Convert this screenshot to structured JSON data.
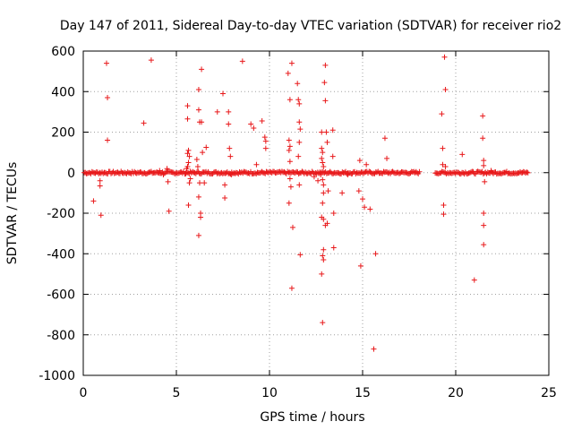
{
  "chart_data": {
    "type": "scatter",
    "title": "Day 147 of 2011, Sidereal Day-to-day VTEC variation (SDTVAR) for receiver rio2",
    "xlabel": "GPS time / hours",
    "ylabel": "SDTVAR / TECUs",
    "xlim": [
      0,
      25
    ],
    "ylim": [
      -1000,
      600
    ],
    "xticks": [
      0,
      5,
      10,
      15,
      20,
      25
    ],
    "yticks": [
      -1000,
      -800,
      -600,
      -400,
      -200,
      0,
      200,
      400,
      600
    ],
    "grid": true,
    "marker": "+",
    "color": "#e8181a",
    "dense_band": {
      "segments": [
        [
          0.05,
          18.1
        ],
        [
          18.9,
          23.9
        ]
      ],
      "y_spread": 6
    },
    "series": [
      {
        "name": "SDTVAR",
        "points": [
          [
            0.55,
            -140
          ],
          [
            0.9,
            -40
          ],
          [
            0.9,
            -65
          ],
          [
            0.95,
            -210
          ],
          [
            1.25,
            540
          ],
          [
            1.3,
            370
          ],
          [
            1.3,
            160
          ],
          [
            3.25,
            245
          ],
          [
            3.65,
            555
          ],
          [
            4.1,
            10
          ],
          [
            4.3,
            -10
          ],
          [
            4.5,
            20
          ],
          [
            4.55,
            -45
          ],
          [
            4.6,
            -190
          ],
          [
            5.5,
            -5
          ],
          [
            5.55,
            20
          ],
          [
            5.6,
            330
          ],
          [
            5.6,
            265
          ],
          [
            5.65,
            110
          ],
          [
            5.6,
            95
          ],
          [
            5.7,
            80
          ],
          [
            5.65,
            50
          ],
          [
            5.6,
            30
          ],
          [
            5.75,
            -30
          ],
          [
            5.7,
            -50
          ],
          [
            5.65,
            -160
          ],
          [
            6.1,
            65
          ],
          [
            6.15,
            30
          ],
          [
            6.2,
            410
          ],
          [
            6.2,
            310
          ],
          [
            6.25,
            250
          ],
          [
            6.25,
            -50
          ],
          [
            6.2,
            -120
          ],
          [
            6.3,
            -200
          ],
          [
            6.3,
            -220
          ],
          [
            6.2,
            -310
          ],
          [
            6.35,
            510
          ],
          [
            6.35,
            250
          ],
          [
            6.4,
            100
          ],
          [
            6.5,
            -50
          ],
          [
            6.6,
            125
          ],
          [
            7.2,
            300
          ],
          [
            7.5,
            390
          ],
          [
            7.6,
            -60
          ],
          [
            7.6,
            -125
          ],
          [
            7.8,
            300
          ],
          [
            7.8,
            240
          ],
          [
            7.85,
            120
          ],
          [
            7.9,
            80
          ],
          [
            7.95,
            -10
          ],
          [
            8.55,
            550
          ],
          [
            9.0,
            240
          ],
          [
            9.15,
            220
          ],
          [
            9.3,
            40
          ],
          [
            9.6,
            255
          ],
          [
            9.75,
            175
          ],
          [
            9.8,
            155
          ],
          [
            9.8,
            120
          ],
          [
            11.0,
            490
          ],
          [
            11.1,
            360
          ],
          [
            11.05,
            160
          ],
          [
            11.1,
            130
          ],
          [
            11.05,
            110
          ],
          [
            11.1,
            55
          ],
          [
            11.1,
            -30
          ],
          [
            11.15,
            -70
          ],
          [
            11.05,
            -150
          ],
          [
            11.2,
            540
          ],
          [
            11.25,
            -270
          ],
          [
            11.2,
            -570
          ],
          [
            11.5,
            440
          ],
          [
            11.55,
            360
          ],
          [
            11.6,
            340
          ],
          [
            11.6,
            250
          ],
          [
            11.65,
            215
          ],
          [
            11.6,
            150
          ],
          [
            11.55,
            80
          ],
          [
            11.6,
            -60
          ],
          [
            11.65,
            -405
          ],
          [
            12.4,
            -20
          ],
          [
            12.6,
            -40
          ],
          [
            12.75,
            -10
          ],
          [
            12.8,
            200
          ],
          [
            12.8,
            120
          ],
          [
            12.85,
            100
          ],
          [
            12.8,
            70
          ],
          [
            12.85,
            50
          ],
          [
            12.9,
            30
          ],
          [
            12.85,
            -35
          ],
          [
            12.9,
            -60
          ],
          [
            12.9,
            -100
          ],
          [
            12.85,
            -150
          ],
          [
            12.8,
            -220
          ],
          [
            12.9,
            -230
          ],
          [
            12.9,
            -380
          ],
          [
            12.85,
            -410
          ],
          [
            12.9,
            -430
          ],
          [
            12.8,
            -500
          ],
          [
            12.85,
            -740
          ],
          [
            12.95,
            445
          ],
          [
            13.0,
            530
          ],
          [
            13.0,
            355
          ],
          [
            13.05,
            200
          ],
          [
            13.1,
            150
          ],
          [
            13.0,
            -260
          ],
          [
            13.1,
            -250
          ],
          [
            13.15,
            -90
          ],
          [
            13.4,
            210
          ],
          [
            13.4,
            80
          ],
          [
            13.45,
            -200
          ],
          [
            13.45,
            -370
          ],
          [
            13.9,
            -100
          ],
          [
            14.2,
            -10
          ],
          [
            14.8,
            -90
          ],
          [
            14.85,
            60
          ],
          [
            14.9,
            -460
          ],
          [
            15.0,
            -130
          ],
          [
            15.1,
            -170
          ],
          [
            15.2,
            40
          ],
          [
            15.4,
            -180
          ],
          [
            15.6,
            -870
          ],
          [
            15.7,
            -400
          ],
          [
            16.2,
            170
          ],
          [
            16.3,
            70
          ],
          [
            19.25,
            290
          ],
          [
            19.3,
            120
          ],
          [
            19.3,
            40
          ],
          [
            19.35,
            -160
          ],
          [
            19.35,
            -205
          ],
          [
            19.4,
            570
          ],
          [
            19.45,
            410
          ],
          [
            19.45,
            30
          ],
          [
            20.35,
            90
          ],
          [
            21.0,
            -530
          ],
          [
            21.45,
            280
          ],
          [
            21.45,
            170
          ],
          [
            21.5,
            60
          ],
          [
            21.5,
            35
          ],
          [
            21.55,
            -45
          ],
          [
            21.5,
            -200
          ],
          [
            21.5,
            -260
          ],
          [
            21.5,
            -355
          ],
          [
            21.9,
            10
          ]
        ]
      }
    ]
  }
}
